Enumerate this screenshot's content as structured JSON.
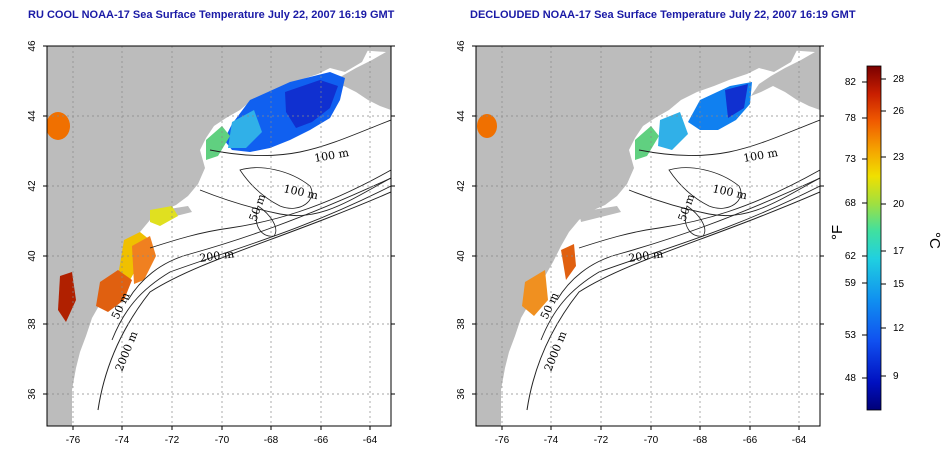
{
  "maps": [
    {
      "title": "RU COOL NOAA-17 Sea Surface Temperature July 22, 2007 16:19 GMT",
      "x_ticks": [
        "-76",
        "-74",
        "-72",
        "-70",
        "-68",
        "-66",
        "-64"
      ],
      "y_ticks": [
        "46",
        "44",
        "42",
        "40",
        "38",
        "36"
      ],
      "contour_labels": [
        "100 m",
        "100 m",
        "50 m",
        "200 m",
        "50 m",
        "2000 m"
      ]
    },
    {
      "title": "DECLOUDED NOAA-17 Sea Surface Temperature July 22, 2007 16:19 GMT",
      "x_ticks": [
        "-76",
        "-74",
        "-72",
        "-70",
        "-68",
        "-66",
        "-64"
      ],
      "y_ticks": [
        "46",
        "44",
        "42",
        "40",
        "38",
        "36"
      ],
      "contour_labels": [
        "100 m",
        "100 m",
        "50 m",
        "200 m",
        "50 m",
        "2000 m"
      ]
    }
  ],
  "colorbar": {
    "fahrenheit_ticks": [
      "82",
      "78",
      "73",
      "68",
      "62",
      "59",
      "53",
      "48"
    ],
    "celsius_ticks": [
      "28",
      "26",
      "23",
      "20",
      "17",
      "15",
      "12",
      "9"
    ],
    "fahrenheit_unit": "°F",
    "celsius_unit": "°C",
    "colors": [
      "#7a0000",
      "#c81e00",
      "#f05a00",
      "#f5a000",
      "#f0e000",
      "#a0e040",
      "#40e0a0",
      "#20d0e0",
      "#1090f0",
      "#1050f0",
      "#0010c0",
      "#000078"
    ]
  },
  "colors": {
    "land": "#bcbcbc",
    "ocean": "#ffffff",
    "title": "#1a1aa6"
  }
}
